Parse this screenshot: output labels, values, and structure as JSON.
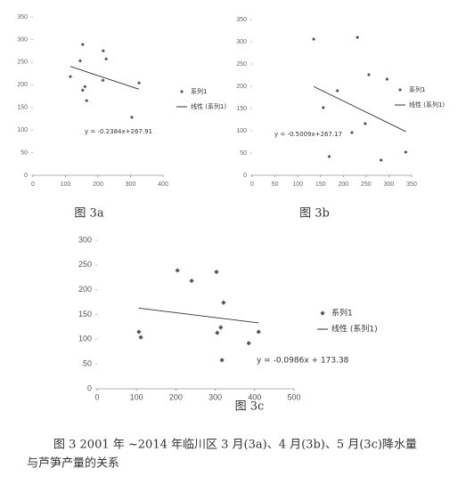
{
  "chart_data": [
    {
      "type": "scatter",
      "caption": "图 3a",
      "xlim": [
        0,
        400
      ],
      "xticks": [
        0,
        100,
        200,
        300,
        400
      ],
      "ylim": [
        0,
        350
      ],
      "yticks": [
        0,
        50,
        100,
        150,
        200,
        250,
        300,
        350
      ],
      "legend": "right",
      "equation": "y = -0.2384x+267.91",
      "series": [
        {
          "name": "系列1",
          "color": "#555555",
          "x": [
            115,
            145,
            153,
            153,
            160,
            165,
            216,
            225,
            215,
            304,
            326
          ],
          "values": [
            218,
            253,
            289,
            188,
            196,
            165,
            275,
            257,
            210,
            128,
            204
          ]
        },
        {
          "name": "线性 (系列1)",
          "type": "line",
          "color": "#333333",
          "x": [
            115,
            326
          ],
          "values": [
            240.5,
            190.2
          ]
        }
      ]
    },
    {
      "type": "scatter",
      "caption": "图 3b",
      "xlim": [
        0,
        350
      ],
      "xticks": [
        0,
        50,
        100,
        150,
        200,
        250,
        300,
        350
      ],
      "ylim": [
        0,
        350
      ],
      "yticks": [
        0,
        50,
        100,
        150,
        200,
        250,
        300,
        350
      ],
      "legend": "right",
      "equation": "y = -0.5009x+267.17",
      "series": [
        {
          "name": "系列1",
          "color": "#555555",
          "x": [
            135,
            156,
            169,
            187,
            219,
            231,
            248,
            256,
            283,
            296,
            337
          ],
          "values": [
            306,
            152,
            42,
            190,
            96,
            310,
            116,
            226,
            34,
            216,
            52
          ]
        },
        {
          "name": "线性 (系列1)",
          "type": "line",
          "color": "#333333",
          "x": [
            135,
            337
          ],
          "values": [
            199.5,
            98.4
          ]
        }
      ]
    },
    {
      "type": "scatter",
      "caption": "图 3c",
      "xlim": [
        0,
        500
      ],
      "xticks": [
        0,
        100,
        200,
        300,
        400,
        500
      ],
      "ylim": [
        0,
        300
      ],
      "yticks": [
        0,
        50,
        100,
        150,
        200,
        250,
        300
      ],
      "legend": "right",
      "equation": "y = -0.0986x + 173.38",
      "series": [
        {
          "name": "系列1",
          "color": "#555555",
          "x": [
            106,
            111,
            204,
            240,
            303,
            305,
            314,
            321,
            317,
            385,
            410
          ],
          "values": [
            115,
            104,
            239,
            218,
            236,
            113,
            124,
            174,
            58,
            92,
            115
          ]
        },
        {
          "name": "线性 (系列1)",
          "type": "line",
          "color": "#333333",
          "x": [
            106,
            410
          ],
          "values": [
            162.9,
            133.0
          ]
        }
      ]
    }
  ],
  "figure_caption": [
    "图 3 2001 年 ~2014 年临川区 3 月(3a)、4 月(3b)、5 月(3c)降水量",
    "与芦笋产量的关系"
  ]
}
